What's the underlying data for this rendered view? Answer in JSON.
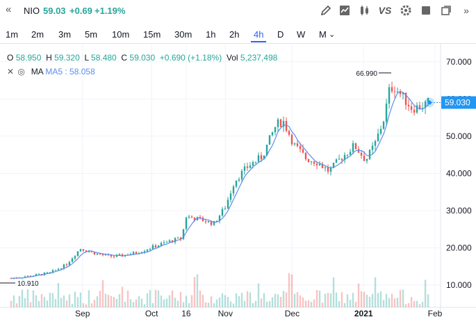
{
  "header": {
    "collapse_icon": "«",
    "symbol": "NIO",
    "last": "59.03",
    "change": "+0.69",
    "change_pct": "+1.19%",
    "toolbar_icons": [
      "pencil-icon",
      "chart-line-icon",
      "candles-icon",
      "compare-icon",
      "gear-icon",
      "fullscreen-icon",
      "popout-icon"
    ],
    "compare_label": "VS"
  },
  "timeframes": [
    "1m",
    "2m",
    "3m",
    "5m",
    "10m",
    "15m",
    "30m",
    "1h",
    "2h",
    "4h",
    "D",
    "W",
    "M"
  ],
  "active_timeframe": "4h",
  "legend": {
    "o_label": "O",
    "o": "58.950",
    "h_label": "H",
    "h": "59.320",
    "l_label": "L",
    "l": "58.480",
    "c_label": "C",
    "c": "59.030",
    "change": "+0.690 (+1.18%)",
    "vol_label": "Vol",
    "vol": "5,237,498"
  },
  "ma": {
    "name": "MA",
    "label": "MA5 : 58.058"
  },
  "colors": {
    "up": "#26a69a",
    "down": "#ef5350",
    "ma": "#5b8def",
    "accent": "#2962ff",
    "price_tag": "#2196f3"
  },
  "chart_data": {
    "type": "candlestick",
    "title": "",
    "y_ticks": [
      "10.000",
      "20.000",
      "30.000",
      "40.000",
      "50.000",
      "60.000",
      "70.000"
    ],
    "ylim": [
      4,
      75
    ],
    "x_ticks": [
      "Sep",
      "Oct",
      "16",
      "Nov",
      "Dec",
      "2021",
      "Feb"
    ],
    "grid": true,
    "last_price": "59.030",
    "high_marker": "66.990",
    "low_marker": "10.910",
    "series_points": [
      {
        "date": "2020-08-01",
        "close": 11.8
      },
      {
        "date": "2020-08-10",
        "close": 12.5
      },
      {
        "date": "2020-08-18",
        "close": 13.3
      },
      {
        "date": "2020-08-25",
        "close": 15.5
      },
      {
        "date": "2020-08-31",
        "close": 19.8
      },
      {
        "date": "2020-09-08",
        "close": 18.2
      },
      {
        "date": "2020-09-15",
        "close": 17.6
      },
      {
        "date": "2020-09-24",
        "close": 18.6
      },
      {
        "date": "2020-10-01",
        "close": 20.1
      },
      {
        "date": "2020-10-08",
        "close": 21.6
      },
      {
        "date": "2020-10-14",
        "close": 22.6
      },
      {
        "date": "2020-10-16",
        "close": 28.4
      },
      {
        "date": "2020-10-22",
        "close": 27.6
      },
      {
        "date": "2020-10-28",
        "close": 26.5
      },
      {
        "date": "2020-11-02",
        "close": 31.0
      },
      {
        "date": "2020-11-06",
        "close": 38.0
      },
      {
        "date": "2020-11-12",
        "close": 42.0
      },
      {
        "date": "2020-11-18",
        "close": 44.5
      },
      {
        "date": "2020-11-24",
        "close": 53.0
      },
      {
        "date": "2020-11-27",
        "close": 54.2
      },
      {
        "date": "2020-12-02",
        "close": 47.5
      },
      {
        "date": "2020-12-07",
        "close": 44.0
      },
      {
        "date": "2020-12-12",
        "close": 43.0
      },
      {
        "date": "2020-12-17",
        "close": 40.5
      },
      {
        "date": "2020-12-22",
        "close": 44.0
      },
      {
        "date": "2020-12-28",
        "close": 47.5
      },
      {
        "date": "2021-01-02",
        "close": 43.5
      },
      {
        "date": "2021-01-06",
        "close": 48.0
      },
      {
        "date": "2021-01-10",
        "close": 55.0
      },
      {
        "date": "2021-01-12",
        "close": 62.0
      },
      {
        "date": "2021-01-14",
        "close": 63.5
      },
      {
        "date": "2021-01-18",
        "close": 60.5
      },
      {
        "date": "2021-01-22",
        "close": 57.5
      },
      {
        "date": "2021-01-26",
        "close": 58.0
      },
      {
        "date": "2021-01-29",
        "close": 59.03
      }
    ]
  }
}
